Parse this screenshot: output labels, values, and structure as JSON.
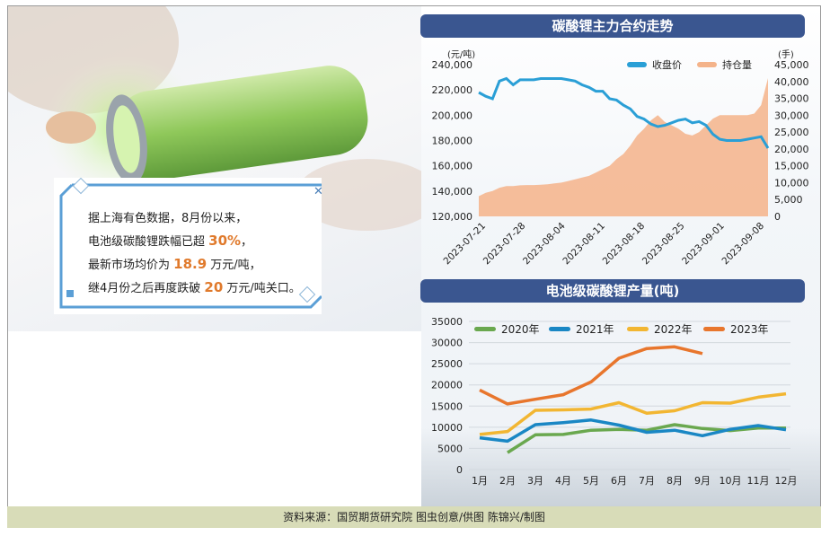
{
  "callout": {
    "line1": "据上海有色数据，8月份以来，",
    "line2_pre": "电池级碳酸锂跌幅已超 ",
    "line2_hl": "30%",
    "line2_post": "，",
    "line3_pre": "最新市场均价为 ",
    "line3_hl": "18.9",
    "line3_post": " 万元/吨，",
    "line4_pre": "继4月份之后再度跌破 ",
    "line4_hl": "20",
    "line4_post": " 万元/吨关口。",
    "close_symbol": "✕"
  },
  "footer": {
    "text": "资料来源：国贸期货研究院  图虫创意/供图  陈锦兴/制图"
  },
  "colors": {
    "title_bg": "#3a5690",
    "close_line": "#2a9fd6",
    "position_area": "#f4b38a",
    "highlight": "#e07a2c",
    "s2020": "#6aa84f",
    "s2021": "#1a87c4",
    "s2022": "#f2b632",
    "s2023": "#e8762d"
  },
  "chart_data": [
    {
      "type": "line",
      "title": "碳酸锂主力合约走势",
      "left_unit": "(元/吨)",
      "right_unit": "(手)",
      "yleft_ticks": [
        "240,000",
        "220,000",
        "200,000",
        "180,000",
        "160,000",
        "140,000",
        "120,000"
      ],
      "yleft_lim": [
        120000,
        240000
      ],
      "yright_ticks": [
        "45,000",
        "40,000",
        "35,000",
        "30,000",
        "25,000",
        "20,000",
        "15,000",
        "10,000",
        "5,000",
        "0"
      ],
      "yright_lim": [
        0,
        45000
      ],
      "x_ticks": [
        "2023-07-21",
        "2023-07-28",
        "2023-08-04",
        "2023-08-11",
        "2023-08-18",
        "2023-08-25",
        "2023-09-01",
        "2023-09-08"
      ],
      "legend": [
        "收盘价",
        "持仓量"
      ],
      "legend_position": "top-right",
      "close_price": [
        218000,
        215000,
        213000,
        227000,
        229000,
        224000,
        228000,
        228000,
        228000,
        229000,
        229000,
        229000,
        229000,
        228000,
        227000,
        224000,
        222000,
        219000,
        219000,
        213000,
        212000,
        208000,
        205000,
        199000,
        197000,
        193000,
        191000,
        192000,
        194000,
        196000,
        197000,
        194000,
        195000,
        192000,
        185000,
        181000,
        180000,
        180000,
        180000,
        181000,
        182000,
        183000,
        174000
      ],
      "open_interest": [
        6000,
        7000,
        7500,
        8500,
        9000,
        9000,
        9200,
        9300,
        9300,
        9400,
        9500,
        9800,
        10000,
        10500,
        11000,
        11500,
        12000,
        13000,
        14000,
        15000,
        17000,
        18500,
        21000,
        24000,
        26000,
        28500,
        30000,
        28000,
        27000,
        26000,
        24500,
        24000,
        25000,
        27000,
        29000,
        30000,
        30000,
        30000,
        30000,
        30000,
        30500,
        33000,
        41000
      ]
    },
    {
      "type": "line",
      "title": "电池级碳酸锂产量(吨)",
      "categories": [
        "1月",
        "2月",
        "3月",
        "4月",
        "5月",
        "6月",
        "7月",
        "8月",
        "9月",
        "10月",
        "11月",
        "12月"
      ],
      "ylim": [
        0,
        35000
      ],
      "y_ticks": [
        "35000",
        "30000",
        "25000",
        "20000",
        "15000",
        "10000",
        "5000",
        "0"
      ],
      "legend_position": "top",
      "series": [
        {
          "name": "2020年",
          "values": [
            null,
            4000,
            8200,
            8300,
            9300,
            9500,
            9300,
            10600,
            9700,
            9200,
            9800,
            9800
          ]
        },
        {
          "name": "2021年",
          "values": [
            7500,
            6700,
            10600,
            11100,
            11700,
            10500,
            8800,
            9300,
            8000,
            9500,
            10400,
            9400
          ]
        },
        {
          "name": "2022年",
          "values": [
            8300,
            9000,
            14000,
            14100,
            14300,
            15800,
            13300,
            13900,
            15800,
            15700,
            17100,
            17900
          ]
        },
        {
          "name": "2023年",
          "values": [
            18800,
            15500,
            16600,
            17700,
            20700,
            26300,
            28600,
            29000,
            27400,
            null,
            null,
            null
          ]
        }
      ]
    }
  ]
}
